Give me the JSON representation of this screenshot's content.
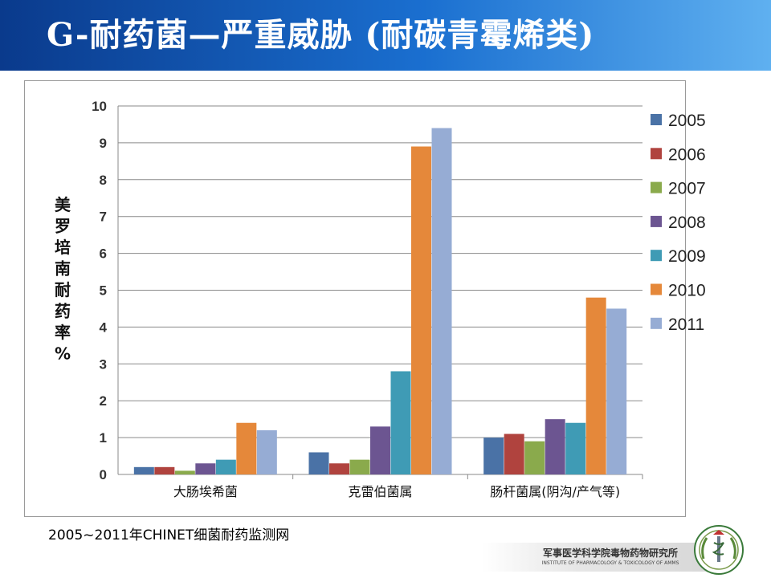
{
  "slide": {
    "title": "G-耐药菌—严重威胁 (耐碳青霉烯类)",
    "source": "2005~2011年CHINET细菌耐药监测网",
    "footer_cn": "军事医学科学院毒物药物研究所",
    "footer_en": "INSTITUTE OF PHARMACOLOGY & TOXICOLOGY OF AMMS"
  },
  "colors": {
    "banner": "#1a5fc0",
    "series": [
      "#4a72a6",
      "#b0433e",
      "#8aaa4c",
      "#6c5591",
      "#3f9bb5",
      "#e5883a",
      "#96acd4"
    ]
  },
  "chart_data": {
    "type": "bar",
    "ylabel": "美罗培南耐药率%",
    "ylim": [
      0,
      10
    ],
    "yticks": [
      "0",
      "1",
      "2",
      "3",
      "4",
      "5",
      "6",
      "7",
      "8",
      "9",
      "10"
    ],
    "grid": true,
    "legend_position": "right",
    "categories": [
      "大肠埃希菌",
      "克雷伯菌属",
      "肠杆菌属(阴沟/产气等)"
    ],
    "series": [
      {
        "name": "2005",
        "values": [
          0.2,
          0.6,
          1.0
        ]
      },
      {
        "name": "2006",
        "values": [
          0.2,
          0.3,
          1.1
        ]
      },
      {
        "name": "2007",
        "values": [
          0.1,
          0.4,
          0.9
        ]
      },
      {
        "name": "2008",
        "values": [
          0.3,
          1.3,
          1.5
        ]
      },
      {
        "name": "2009",
        "values": [
          0.4,
          2.8,
          1.4
        ]
      },
      {
        "name": "2010",
        "values": [
          1.4,
          8.9,
          4.8
        ]
      },
      {
        "name": "2011",
        "values": [
          1.2,
          9.4,
          4.5
        ]
      }
    ]
  }
}
